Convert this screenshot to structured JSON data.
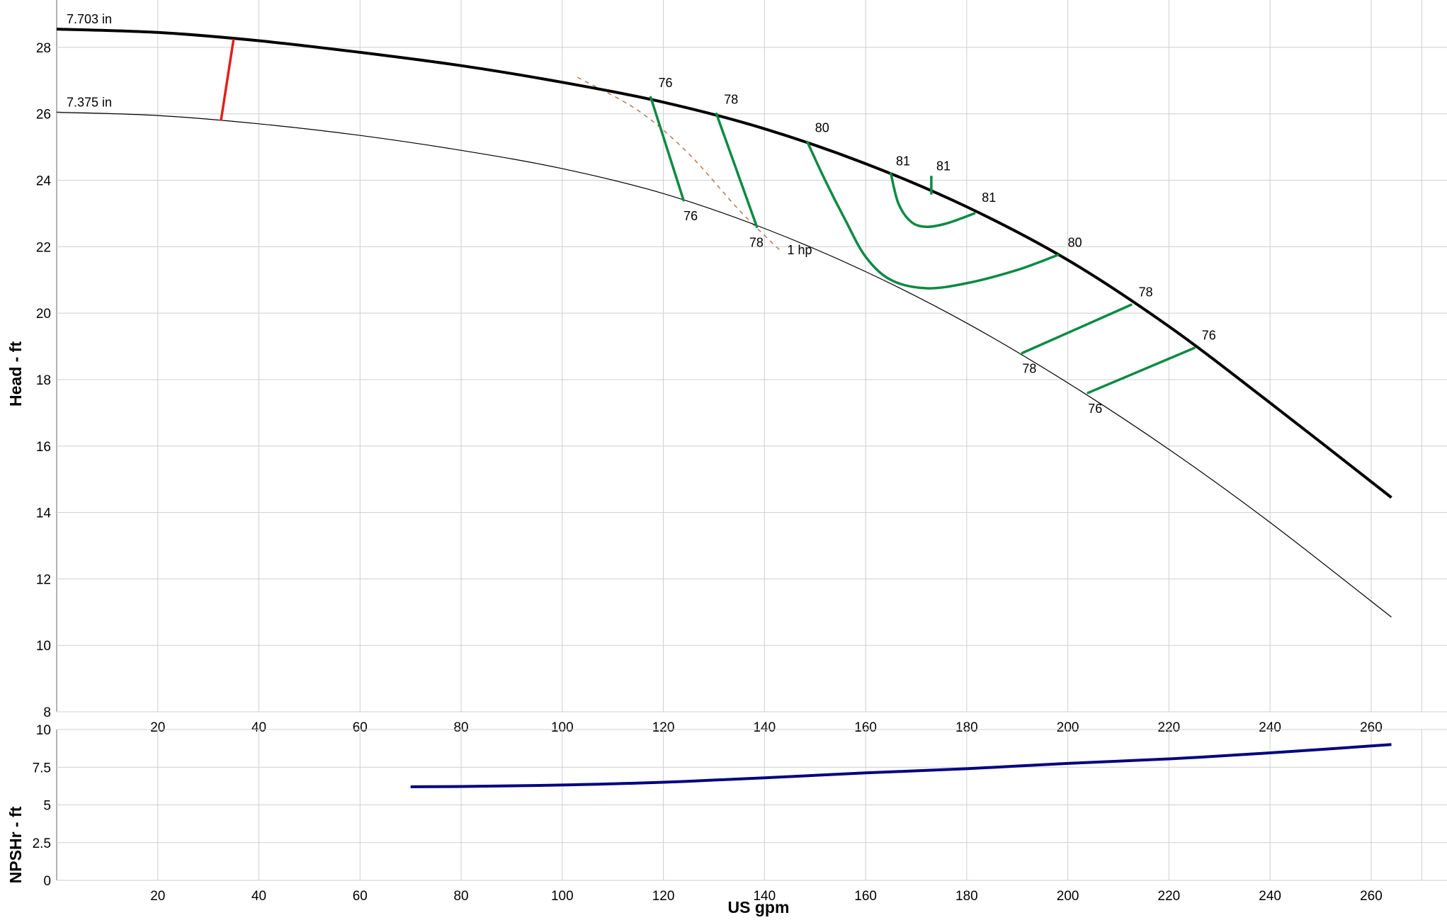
{
  "chart_data": [
    {
      "type": "line",
      "xlabel": "",
      "ylabel": "Head - ft",
      "xlim": [
        0,
        275
      ],
      "ylim": [
        8,
        29
      ],
      "x_ticks": [
        20,
        40,
        60,
        80,
        100,
        120,
        140,
        160,
        180,
        200,
        220,
        240,
        260
      ],
      "y_ticks": [
        8,
        10,
        12,
        14,
        16,
        18,
        20,
        22,
        24,
        26,
        28
      ],
      "grid": true,
      "series": [
        {
          "name": "7.703 in",
          "color": "#000000",
          "x": [
            0,
            20,
            40,
            60,
            80,
            100,
            120,
            140,
            160,
            180,
            200,
            220,
            240,
            264
          ],
          "y": [
            28.55,
            28.45,
            28.2,
            27.85,
            27.45,
            26.95,
            26.35,
            25.55,
            24.5,
            23.2,
            21.6,
            19.6,
            17.3,
            14.45
          ]
        },
        {
          "name": "7.375 in",
          "color": "#000000",
          "x": [
            0,
            20,
            40,
            60,
            80,
            100,
            120,
            140,
            160,
            180,
            200,
            220,
            240,
            264
          ],
          "y": [
            26.05,
            25.95,
            25.7,
            25.35,
            24.9,
            24.35,
            23.6,
            22.55,
            21.25,
            19.7,
            17.9,
            15.9,
            13.7,
            10.85
          ]
        }
      ],
      "red_line": {
        "color": "#e0201c",
        "points": [
          [
            32.5,
            25.8
          ],
          [
            35,
            28.25
          ]
        ]
      },
      "power_curve": {
        "label": "1 hp",
        "color": "#b37a56",
        "points": [
          [
            103,
            27.1
          ],
          [
            115,
            26.1
          ],
          [
            125,
            24.8
          ],
          [
            135,
            23.1
          ],
          [
            143,
            21.9
          ]
        ]
      },
      "efficiency_contours": [
        {
          "color": "#0a8a42",
          "points": [
            [
              117.5,
              26.5
            ],
            [
              124,
              23.4
            ]
          ]
        },
        {
          "color": "#0a8a42",
          "points": [
            [
              130.5,
              26.0
            ],
            [
              138.5,
              22.6
            ]
          ]
        },
        {
          "color": "#0a8a42",
          "points": [
            [
              148.5,
              25.15
            ],
            [
              152,
              24.0
            ],
            [
              156,
              22.8
            ],
            [
              160,
              21.7
            ],
            [
              165,
              21.0
            ],
            [
              172,
              20.75
            ],
            [
              180,
              20.9
            ],
            [
              190,
              21.3
            ],
            [
              198,
              21.75
            ]
          ]
        },
        {
          "color": "#0a8a42",
          "points": [
            [
              165,
              24.2
            ],
            [
              166.5,
              23.3
            ],
            [
              169,
              22.75
            ],
            [
              172,
              22.6
            ],
            [
              176,
              22.7
            ],
            [
              181.5,
              23.0
            ]
          ]
        },
        {
          "color": "#0a8a42",
          "points": [
            [
              173,
              24.1
            ],
            [
              173,
              23.6
            ]
          ]
        },
        {
          "color": "#0a8a42",
          "points": [
            [
              191,
              18.8
            ],
            [
              212.5,
              20.25
            ]
          ]
        },
        {
          "color": "#0a8a42",
          "points": [
            [
              204,
              17.6
            ],
            [
              225,
              18.95
            ]
          ]
        }
      ],
      "efficiency_labels": [
        {
          "text": "76",
          "x": 119,
          "y": 26.8
        },
        {
          "text": "78",
          "x": 132,
          "y": 26.3
        },
        {
          "text": "80",
          "x": 150,
          "y": 25.45
        },
        {
          "text": "81",
          "x": 166,
          "y": 24.45
        },
        {
          "text": "81",
          "x": 174,
          "y": 24.3
        },
        {
          "text": "81",
          "x": 183,
          "y": 23.35
        },
        {
          "text": "80",
          "x": 200,
          "y": 22.0
        },
        {
          "text": "78",
          "x": 214,
          "y": 20.5
        },
        {
          "text": "76",
          "x": 226.5,
          "y": 19.2
        },
        {
          "text": "76",
          "x": 124,
          "y": 22.8
        },
        {
          "text": "78",
          "x": 137,
          "y": 22.0
        },
        {
          "text": "78",
          "x": 191,
          "y": 18.2
        },
        {
          "text": "76",
          "x": 204,
          "y": 17.0
        }
      ]
    },
    {
      "type": "line",
      "xlabel": "US gpm",
      "ylabel": "NPSHr - ft",
      "xlim": [
        0,
        275
      ],
      "ylim": [
        0,
        10
      ],
      "x_ticks": [
        20,
        40,
        60,
        80,
        100,
        120,
        140,
        160,
        180,
        200,
        220,
        240,
        260
      ],
      "y_ticks": [
        0,
        2.5,
        5,
        7.5,
        10
      ],
      "y_tick_labels": [
        "0",
        "2.5",
        "5",
        "7.5",
        "10"
      ],
      "grid": true,
      "series": [
        {
          "color": "#000080",
          "x": [
            70,
            80,
            100,
            120,
            140,
            160,
            180,
            200,
            220,
            240,
            264
          ],
          "y": [
            6.2,
            6.22,
            6.32,
            6.5,
            6.8,
            7.12,
            7.4,
            7.75,
            8.05,
            8.45,
            9.0
          ]
        }
      ]
    }
  ]
}
